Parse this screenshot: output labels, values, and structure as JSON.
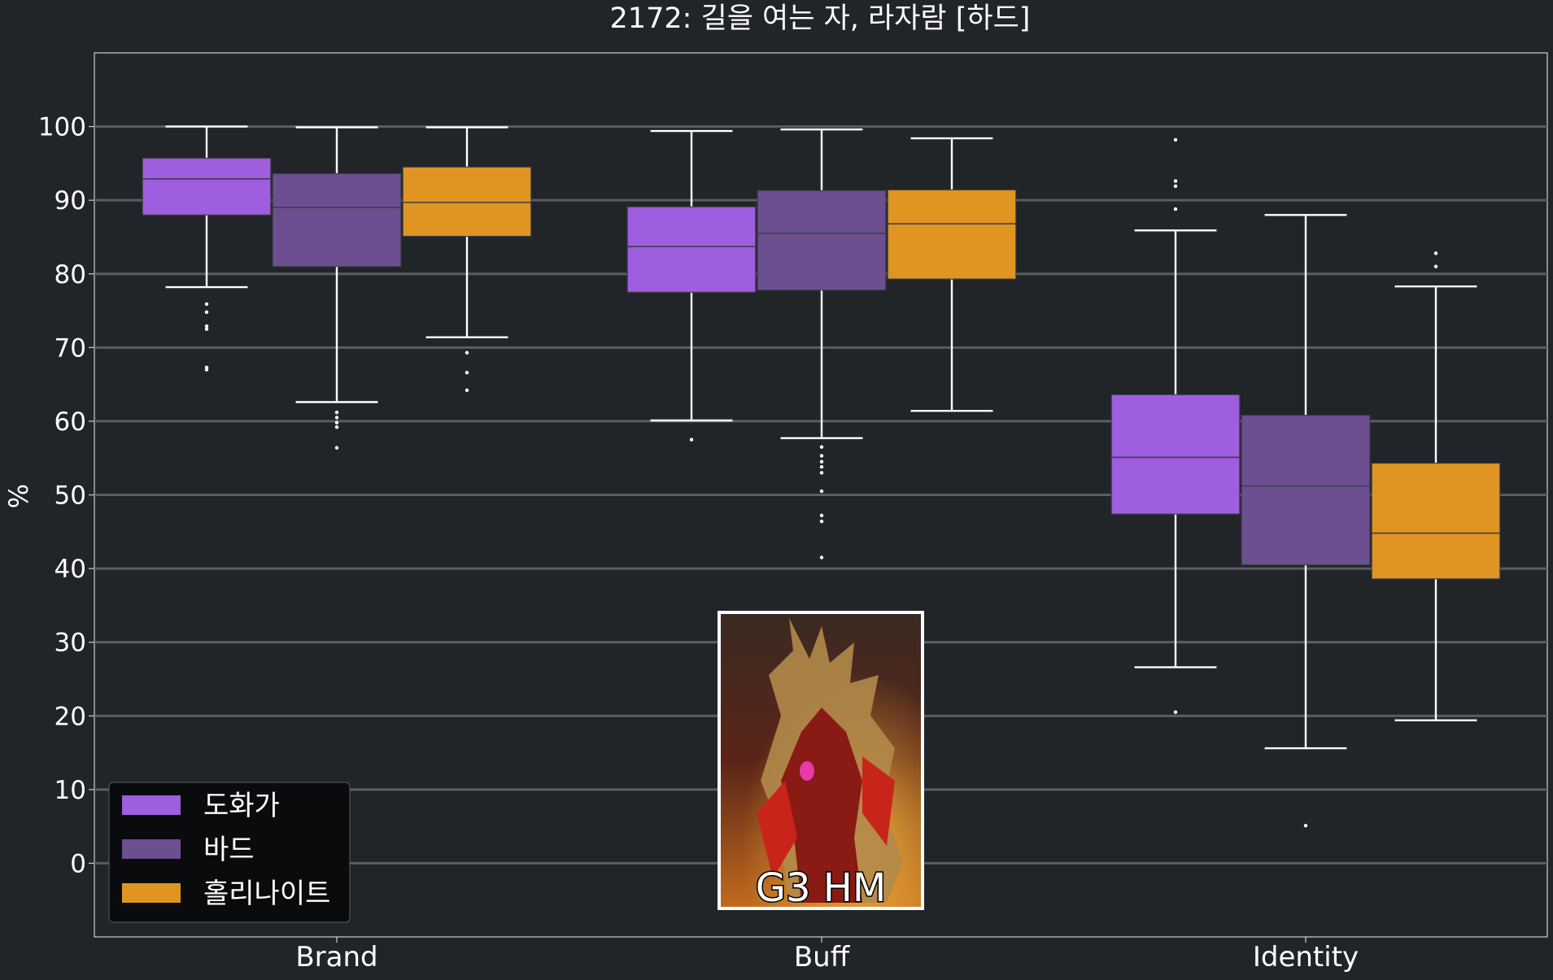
{
  "chart_data": {
    "type": "box",
    "title": "2172: 길을 여는 자, 라자람 [하드]",
    "xlabel": "",
    "ylabel": "%",
    "ylim": [
      -10,
      110
    ],
    "yticks": [
      0,
      10,
      20,
      30,
      40,
      50,
      60,
      70,
      80,
      90,
      100
    ],
    "grid": "horizontal",
    "legend_position": "bottom-left",
    "categories": [
      "Brand",
      "Buff",
      "Identity"
    ],
    "series": [
      {
        "name": "도화가",
        "color": "#9f5de0",
        "boxes": [
          {
            "whisker_low": 78.2,
            "q1": 88.0,
            "median": 92.9,
            "q3": 95.7,
            "whisker_high": 100.0,
            "outliers": [
              75.9,
              74.8,
              72.9,
              72.5,
              67.3,
              67.0
            ]
          },
          {
            "whisker_low": 60.1,
            "q1": 77.5,
            "median": 83.7,
            "q3": 89.1,
            "whisker_high": 99.4,
            "outliers": [
              57.5
            ]
          },
          {
            "whisker_low": 26.6,
            "q1": 47.4,
            "median": 55.1,
            "q3": 63.6,
            "whisker_high": 85.9,
            "outliers": [
              98.2,
              92.6,
              91.9,
              88.8,
              20.5
            ]
          }
        ]
      },
      {
        "name": "바드",
        "color": "#6b4f91",
        "boxes": [
          {
            "whisker_low": 62.6,
            "q1": 81.0,
            "median": 89.0,
            "q3": 93.6,
            "whisker_high": 99.9,
            "outliers": [
              61.2,
              60.5,
              59.8,
              59.2,
              56.4
            ]
          },
          {
            "whisker_low": 57.7,
            "q1": 77.8,
            "median": 85.5,
            "q3": 91.3,
            "whisker_high": 99.6,
            "outliers": [
              56.5,
              55.3,
              54.5,
              53.8,
              53.0,
              50.5,
              47.2,
              46.4,
              41.5
            ]
          },
          {
            "whisker_low": 15.6,
            "q1": 40.5,
            "median": 51.2,
            "q3": 60.8,
            "whisker_high": 88.0,
            "outliers": [
              5.1
            ]
          }
        ]
      },
      {
        "name": "홀리나이트",
        "color": "#e09522",
        "boxes": [
          {
            "whisker_low": 71.4,
            "q1": 85.1,
            "median": 89.7,
            "q3": 94.5,
            "whisker_high": 99.9,
            "outliers": [
              69.3,
              66.6,
              64.2
            ]
          },
          {
            "whisker_low": 61.4,
            "q1": 79.3,
            "median": 86.8,
            "q3": 91.4,
            "whisker_high": 98.4,
            "outliers": []
          },
          {
            "whisker_low": 19.4,
            "q1": 38.6,
            "median": 44.8,
            "q3": 54.3,
            "whisker_high": 78.3,
            "outliers": [
              82.8,
              81.0
            ]
          }
        ]
      }
    ],
    "image_caption": "G3 HM"
  },
  "colors": {
    "background": "#212429",
    "grid": "#5a5d62",
    "whisker": "#ffffff",
    "legend_bg": "#0a0b0d"
  }
}
